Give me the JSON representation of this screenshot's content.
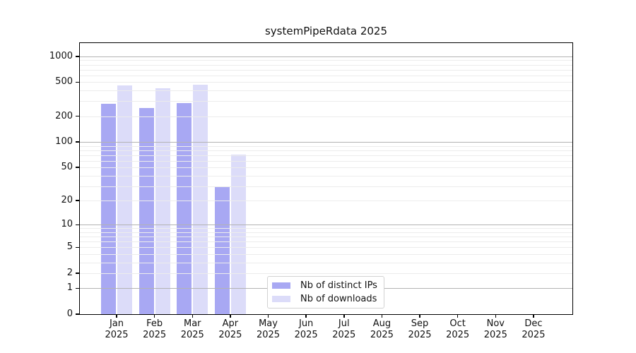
{
  "title": "systemPipeRdata 2025",
  "chart_data": {
    "type": "bar",
    "title": "systemPipeRdata 2025",
    "categories": [
      "Jan 2025",
      "Feb 2025",
      "Mar 2025",
      "Apr 2025",
      "May 2025",
      "Jun 2025",
      "Jul 2025",
      "Aug 2025",
      "Sep 2025",
      "Oct 2025",
      "Nov 2025",
      "Dec 2025"
    ],
    "x_tick_line1": [
      "Jan",
      "Feb",
      "Mar",
      "Apr",
      "May",
      "Jun",
      "Jul",
      "Aug",
      "Sep",
      "Oct",
      "Nov",
      "Dec"
    ],
    "x_tick_line2": [
      "2025",
      "2025",
      "2025",
      "2025",
      "2025",
      "2025",
      "2025",
      "2025",
      "2025",
      "2025",
      "2025",
      "2025"
    ],
    "series": [
      {
        "name": "Nb of distinct IPs",
        "color": "#a8a8f3",
        "values": [
          280,
          248,
          285,
          30,
          0,
          0,
          0,
          0,
          0,
          0,
          0,
          0
        ]
      },
      {
        "name": "Nb of downloads",
        "color": "#dcdcf9",
        "values": [
          459,
          424,
          472,
          71,
          0,
          0,
          0,
          0,
          0,
          0,
          0,
          0
        ]
      }
    ],
    "y_axis": {
      "scale": "log1p",
      "tick_values": [
        0,
        1,
        2,
        5,
        10,
        20,
        50,
        100,
        200,
        500,
        1000
      ],
      "major_grid_values": [
        1,
        10,
        100,
        1000
      ],
      "minor_grid_bases": [
        1,
        10,
        100
      ],
      "ylim": [
        0,
        1430
      ]
    },
    "grid": true,
    "legend_position": "inside-bottom-center"
  },
  "colors": {
    "axis": "#000000",
    "major_grid": "#b3b3b3",
    "minor_grid": "#ececec",
    "legend_border": "#d2d2d2",
    "text": "#111111",
    "background": "#ffffff"
  }
}
